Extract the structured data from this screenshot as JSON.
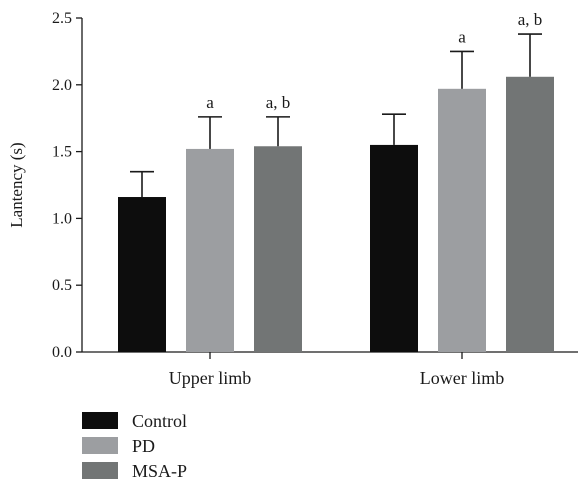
{
  "chart_data": {
    "type": "bar",
    "title": "",
    "xlabel": "",
    "ylabel": "Lantency (s)",
    "ylim": [
      0,
      2.5
    ],
    "yticks": [
      0.0,
      0.5,
      1.0,
      1.5,
      2.0,
      2.5
    ],
    "ytick_labels": [
      "0.0",
      "0.5",
      "1.0",
      "1.5",
      "2.0",
      "2.5"
    ],
    "categories": [
      "Upper limb",
      "Lower limb"
    ],
    "series": [
      {
        "name": "Control",
        "color": "#0d0d0d",
        "values": [
          1.16,
          1.55
        ],
        "errors": [
          0.19,
          0.23
        ],
        "annotations": [
          "",
          ""
        ]
      },
      {
        "name": "PD",
        "color": "#9c9ea1",
        "values": [
          1.52,
          1.97
        ],
        "errors": [
          0.24,
          0.28
        ],
        "annotations": [
          "a",
          "a"
        ]
      },
      {
        "name": "MSA-P",
        "color": "#727575",
        "values": [
          1.54,
          2.06
        ],
        "errors": [
          0.22,
          0.32
        ],
        "annotations": [
          "a, b",
          "a, b"
        ]
      }
    ],
    "error_bars": "upper",
    "legend_position": "bottom-left",
    "grid": false
  }
}
